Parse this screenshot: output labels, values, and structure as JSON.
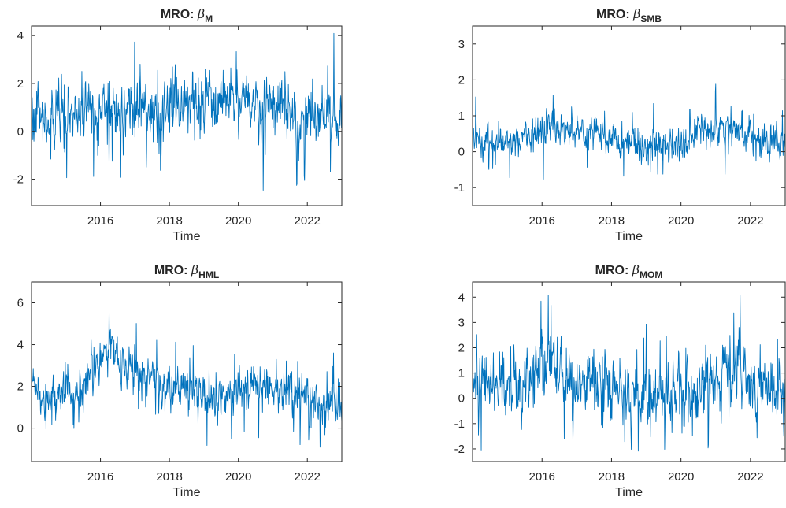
{
  "chart_data": [
    {
      "type": "line",
      "title_prefix": "MRO: ",
      "title_symbol": "β",
      "title_subscript": "M",
      "xlabel": "Time",
      "ylabel": "",
      "xlim": [
        2014.0,
        2023.0
      ],
      "ylim": [
        -3.1,
        4.4
      ],
      "xticks": [
        2016,
        2018,
        2020,
        2022
      ],
      "yticks": [
        -2,
        0,
        2,
        4
      ],
      "color": "#0072BD",
      "grid": false,
      "series": [
        {
          "x": [
            2014.0,
            2014.25,
            2014.5,
            2014.75,
            2015.0,
            2015.25,
            2015.5,
            2015.75,
            2016.0,
            2016.25,
            2016.5,
            2016.75,
            2017.0,
            2017.25,
            2017.5,
            2017.75,
            2018.0,
            2018.25,
            2018.5,
            2018.75,
            2019.0,
            2019.25,
            2019.5,
            2019.75,
            2020.0,
            2020.25,
            2020.5,
            2020.75,
            2021.0,
            2021.25,
            2021.5,
            2021.75,
            2022.0,
            2022.25,
            2022.5,
            2022.75,
            2023.0
          ],
          "values": [
            0.9,
            0.5,
            0.3,
            0.5,
            0.6,
            0.6,
            0.7,
            0.7,
            0.8,
            0.8,
            0.9,
            0.9,
            0.9,
            1.0,
            1.0,
            1.0,
            1.1,
            1.1,
            1.1,
            1.1,
            1.1,
            1.2,
            1.2,
            1.2,
            1.2,
            1.3,
            1.2,
            1.1,
            1.1,
            1.0,
            0.8,
            0.5,
            0.7,
            0.8,
            0.6,
            0.5,
            0.4
          ]
        }
      ]
    },
    {
      "type": "line",
      "title_prefix": "MRO: ",
      "title_symbol": "β",
      "title_subscript": "SMB",
      "xlabel": "Time",
      "ylabel": "",
      "xlim": [
        2014.0,
        2023.0
      ],
      "ylim": [
        -1.5,
        3.5
      ],
      "xticks": [
        2016,
        2018,
        2020,
        2022
      ],
      "yticks": [
        -1,
        0,
        1,
        2,
        3
      ],
      "color": "#0072BD",
      "grid": false,
      "series": [
        {
          "x": [
            2014.0,
            2014.25,
            2014.5,
            2014.75,
            2015.0,
            2015.25,
            2015.5,
            2015.75,
            2016.0,
            2016.25,
            2016.5,
            2016.75,
            2017.0,
            2017.25,
            2017.5,
            2017.75,
            2018.0,
            2018.25,
            2018.5,
            2018.75,
            2019.0,
            2019.25,
            2019.5,
            2019.75,
            2020.0,
            2020.25,
            2020.5,
            2020.75,
            2021.0,
            2021.25,
            2021.5,
            2021.75,
            2022.0,
            2022.25,
            2022.5,
            2022.75,
            2023.0
          ],
          "values": [
            0.4,
            0.3,
            0.3,
            0.3,
            0.3,
            0.3,
            0.4,
            0.6,
            0.6,
            0.8,
            0.6,
            0.5,
            0.5,
            0.5,
            0.5,
            0.4,
            0.3,
            0.3,
            0.3,
            0.2,
            0.1,
            0.2,
            0.1,
            0.2,
            0.2,
            0.3,
            0.7,
            0.6,
            0.6,
            0.6,
            0.5,
            0.5,
            0.4,
            0.3,
            0.1,
            0.2,
            0.1
          ]
        }
      ]
    },
    {
      "type": "line",
      "title_prefix": "MRO: ",
      "title_symbol": "β",
      "title_subscript": "HML",
      "xlabel": "Time",
      "ylabel": "",
      "xlim": [
        2014.0,
        2023.0
      ],
      "ylim": [
        -1.6,
        7.0
      ],
      "xticks": [
        2016,
        2018,
        2020,
        2022
      ],
      "yticks": [
        0,
        2,
        4,
        6
      ],
      "color": "#0072BD",
      "grid": false,
      "series": [
        {
          "x": [
            2014.0,
            2014.25,
            2014.5,
            2014.75,
            2015.0,
            2015.25,
            2015.5,
            2015.75,
            2016.0,
            2016.25,
            2016.5,
            2016.75,
            2017.0,
            2017.25,
            2017.5,
            2017.75,
            2018.0,
            2018.25,
            2018.5,
            2018.75,
            2019.0,
            2019.25,
            2019.5,
            2019.75,
            2020.0,
            2020.25,
            2020.5,
            2020.75,
            2021.0,
            2021.25,
            2021.5,
            2021.75,
            2022.0,
            2022.25,
            2022.5,
            2022.75,
            2023.0
          ],
          "values": [
            2.5,
            1.6,
            1.3,
            1.6,
            1.7,
            1.5,
            2.0,
            2.5,
            3.3,
            4.0,
            3.2,
            2.8,
            2.7,
            2.5,
            2.4,
            2.2,
            2.0,
            1.9,
            1.8,
            1.7,
            1.6,
            1.5,
            1.6,
            1.6,
            1.7,
            1.8,
            2.0,
            2.0,
            1.8,
            1.8,
            1.7,
            1.5,
            1.3,
            1.2,
            1.0,
            1.1,
            1.0
          ]
        }
      ]
    },
    {
      "type": "line",
      "title_prefix": "MRO: ",
      "title_symbol": "β",
      "title_subscript": "MOM",
      "xlabel": "Time",
      "ylabel": "",
      "xlim": [
        2014.0,
        2023.0
      ],
      "ylim": [
        -2.5,
        4.6
      ],
      "xticks": [
        2016,
        2018,
        2020,
        2022
      ],
      "yticks": [
        -2,
        -1,
        0,
        1,
        2,
        3,
        4
      ],
      "color": "#0072BD",
      "grid": false,
      "series": [
        {
          "x": [
            2014.0,
            2014.25,
            2014.5,
            2014.75,
            2015.0,
            2015.25,
            2015.5,
            2015.75,
            2016.0,
            2016.25,
            2016.5,
            2016.75,
            2017.0,
            2017.25,
            2017.5,
            2017.75,
            2018.0,
            2018.25,
            2018.5,
            2018.75,
            2019.0,
            2019.25,
            2019.5,
            2019.75,
            2020.0,
            2020.25,
            2020.5,
            2020.75,
            2021.0,
            2021.25,
            2021.5,
            2021.75,
            2022.0,
            2022.25,
            2022.5,
            2022.75,
            2023.0
          ],
          "values": [
            0.7,
            0.5,
            0.5,
            0.5,
            0.6,
            0.7,
            0.8,
            0.9,
            1.1,
            1.4,
            1.0,
            0.8,
            0.7,
            0.6,
            0.6,
            0.5,
            0.4,
            0.3,
            0.2,
            0.1,
            0.1,
            0.0,
            0.1,
            0.2,
            0.0,
            0.2,
            0.3,
            0.4,
            0.5,
            0.8,
            1.3,
            0.9,
            0.6,
            0.4,
            0.3,
            0.4,
            0.5
          ]
        }
      ]
    }
  ]
}
